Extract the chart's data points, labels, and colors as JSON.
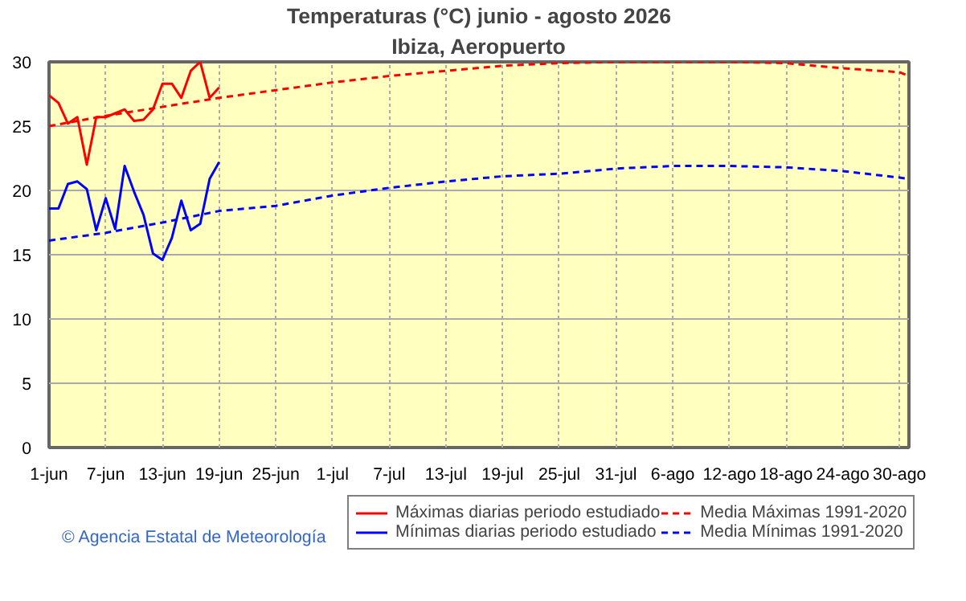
{
  "chart_data": {
    "type": "line",
    "title": "Temperaturas (°C) junio - agosto 2026",
    "subtitle": "Ibiza, Aeropuerto",
    "annotations": [
      "© Agencia Estatal de Meteorología"
    ],
    "series": [
      {
        "name": "Máximas diarias periodo estudiado",
        "color": "#ff0000",
        "line_style": "solid",
        "x": [
          "2026-06-01",
          "2026-06-02",
          "2026-06-03",
          "2026-06-04",
          "2026-06-05",
          "2026-06-06",
          "2026-06-07",
          "2026-06-08",
          "2026-06-09",
          "2026-06-10",
          "2026-06-11",
          "2026-06-12",
          "2026-06-13",
          "2026-06-14",
          "2026-06-15",
          "2026-06-16",
          "2026-06-17",
          "2026-06-18",
          "2026-06-19"
        ],
        "values": [
          27.4,
          26.8,
          25.2,
          25.7,
          22.0,
          25.7,
          25.7,
          26.0,
          26.3,
          25.4,
          25.5,
          26.3,
          28.3,
          28.3,
          27.2,
          29.3,
          30.0,
          27.2,
          28.0
        ]
      },
      {
        "name": "Mínimas diarias periodo estudiado",
        "color": "#0000ff",
        "line_style": "solid",
        "x": [
          "2026-06-01",
          "2026-06-02",
          "2026-06-03",
          "2026-06-04",
          "2026-06-05",
          "2026-06-06",
          "2026-06-07",
          "2026-06-08",
          "2026-06-09",
          "2026-06-10",
          "2026-06-11",
          "2026-06-12",
          "2026-06-13",
          "2026-06-14",
          "2026-06-15",
          "2026-06-16",
          "2026-06-17",
          "2026-06-18",
          "2026-06-19"
        ],
        "values": [
          18.6,
          18.6,
          20.5,
          20.7,
          20.1,
          16.9,
          19.4,
          17.0,
          21.9,
          19.9,
          18.1,
          15.1,
          14.6,
          16.3,
          19.2,
          16.9,
          17.4,
          20.9,
          22.2
        ]
      },
      {
        "name": "Media Máximas 1991-2020",
        "color": "#ff0000",
        "line_style": "dashed",
        "x": [
          "2026-06-01",
          "2026-06-07",
          "2026-06-13",
          "2026-06-19",
          "2026-06-25",
          "2026-07-01",
          "2026-07-07",
          "2026-07-13",
          "2026-07-19",
          "2026-07-25",
          "2026-07-31",
          "2026-08-06",
          "2026-08-12",
          "2026-08-18",
          "2026-08-24",
          "2026-08-30",
          "2026-08-31"
        ],
        "values": [
          25.0,
          25.8,
          26.5,
          27.2,
          27.8,
          28.4,
          28.9,
          29.3,
          29.7,
          29.9,
          30.0,
          30.0,
          30.0,
          29.9,
          29.5,
          29.2,
          28.9
        ]
      },
      {
        "name": "Media Mínimas 1991-2020",
        "color": "#0000ff",
        "line_style": "dashed",
        "x": [
          "2026-06-01",
          "2026-06-07",
          "2026-06-13",
          "2026-06-19",
          "2026-06-25",
          "2026-07-01",
          "2026-07-07",
          "2026-07-13",
          "2026-07-19",
          "2026-07-25",
          "2026-07-31",
          "2026-08-06",
          "2026-08-12",
          "2026-08-18",
          "2026-08-24",
          "2026-08-30",
          "2026-08-31"
        ],
        "values": [
          16.1,
          16.7,
          17.5,
          18.4,
          18.8,
          19.6,
          20.2,
          20.7,
          21.1,
          21.3,
          21.7,
          21.9,
          21.9,
          21.8,
          21.5,
          21.0,
          20.9
        ]
      }
    ],
    "xlim": [
      "2026-06-01",
      "2026-08-31"
    ],
    "xticks": [
      {
        "value": "2026-06-01",
        "label": "1-jun"
      },
      {
        "value": "2026-06-07",
        "label": "7-jun"
      },
      {
        "value": "2026-06-13",
        "label": "13-jun"
      },
      {
        "value": "2026-06-19",
        "label": "19-jun"
      },
      {
        "value": "2026-06-25",
        "label": "25-jun"
      },
      {
        "value": "2026-07-01",
        "label": "1-jul"
      },
      {
        "value": "2026-07-07",
        "label": "7-jul"
      },
      {
        "value": "2026-07-13",
        "label": "13-jul"
      },
      {
        "value": "2026-07-19",
        "label": "19-jul"
      },
      {
        "value": "2026-07-25",
        "label": "25-jul"
      },
      {
        "value": "2026-07-31",
        "label": "31-jul"
      },
      {
        "value": "2026-08-06",
        "label": "6-ago"
      },
      {
        "value": "2026-08-12",
        "label": "12-ago"
      },
      {
        "value": "2026-08-18",
        "label": "18-ago"
      },
      {
        "value": "2026-08-24",
        "label": "24-ago"
      },
      {
        "value": "2026-08-30",
        "label": "30-ago"
      }
    ],
    "ylim": [
      0,
      30
    ],
    "yticks": [
      0,
      5,
      10,
      15,
      20,
      25,
      30
    ],
    "grid": true,
    "legend": "bottom",
    "marker": "none"
  }
}
